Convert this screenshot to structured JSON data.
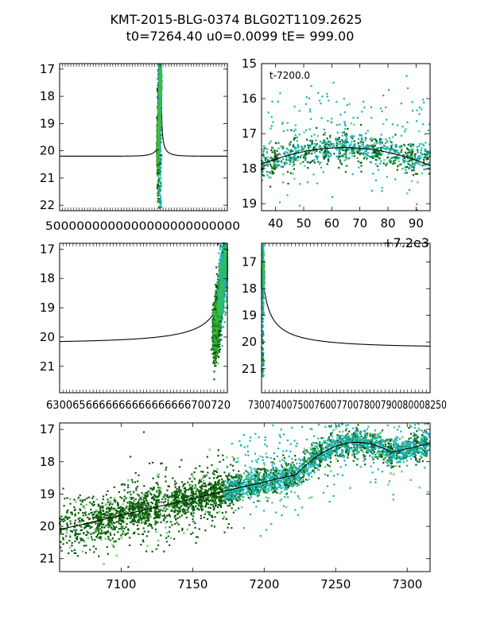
{
  "figure": {
    "title_line1": "KMT-2015-BLG-0374 BLG02T1109.2625",
    "title_line2": "t0=7264.40 u0=0.0099 tE= 999.00"
  },
  "colors": {
    "model": "#000000",
    "dark_green": "#0b5d0b",
    "cyan": "#19b3b3",
    "light_green": "#3fbf3f",
    "axis": "#000000"
  },
  "chart_data": [
    {
      "type": "scatter",
      "panel": "full_range",
      "xlim": [
        0,
        12000
      ],
      "ylim": [
        22.2,
        16.8
      ],
      "yticks": [
        17,
        18,
        19,
        20,
        21,
        22
      ],
      "xtick_labels_text": "5000000000000000000000000",
      "model": "paczynski",
      "event_center_x": 7264.4
    },
    {
      "type": "scatter",
      "panel": "peak_zoom",
      "xlim": [
        35,
        95
      ],
      "ylim": [
        19.2,
        15.0
      ],
      "xticks": [
        40,
        50,
        60,
        70,
        80,
        90
      ],
      "yticks": [
        15,
        16,
        17,
        18,
        19
      ],
      "offset_label": "+7.2e3",
      "annotation": "t-7200.0",
      "peak_x": 64.4,
      "peak_mag": 17.4
    },
    {
      "type": "scatter",
      "panel": "left_wing",
      "xlim": [
        6300,
        7270
      ],
      "ylim": [
        21.9,
        16.8
      ],
      "yticks": [
        17,
        18,
        19,
        20,
        21
      ],
      "xtick_labels_text": "6300656666666666666666700720"
    },
    {
      "type": "scatter",
      "panel": "right_wing",
      "xlim": [
        7264,
        8250
      ],
      "ylim": [
        21.9,
        16.3
      ],
      "yticks": [
        17,
        18,
        19,
        20,
        21
      ],
      "xtick_labels_text": "730074007500760077007800790080008250"
    },
    {
      "type": "scatter",
      "panel": "season",
      "xlim": [
        7057,
        7316
      ],
      "ylim": [
        21.4,
        16.8
      ],
      "xticks": [
        7100,
        7150,
        7200,
        7250,
        7300
      ],
      "yticks": [
        17,
        18,
        19,
        20,
        21
      ],
      "baseline_mag": 20.2,
      "peak_x": 7264.4,
      "peak_mag": 17.4
    }
  ]
}
